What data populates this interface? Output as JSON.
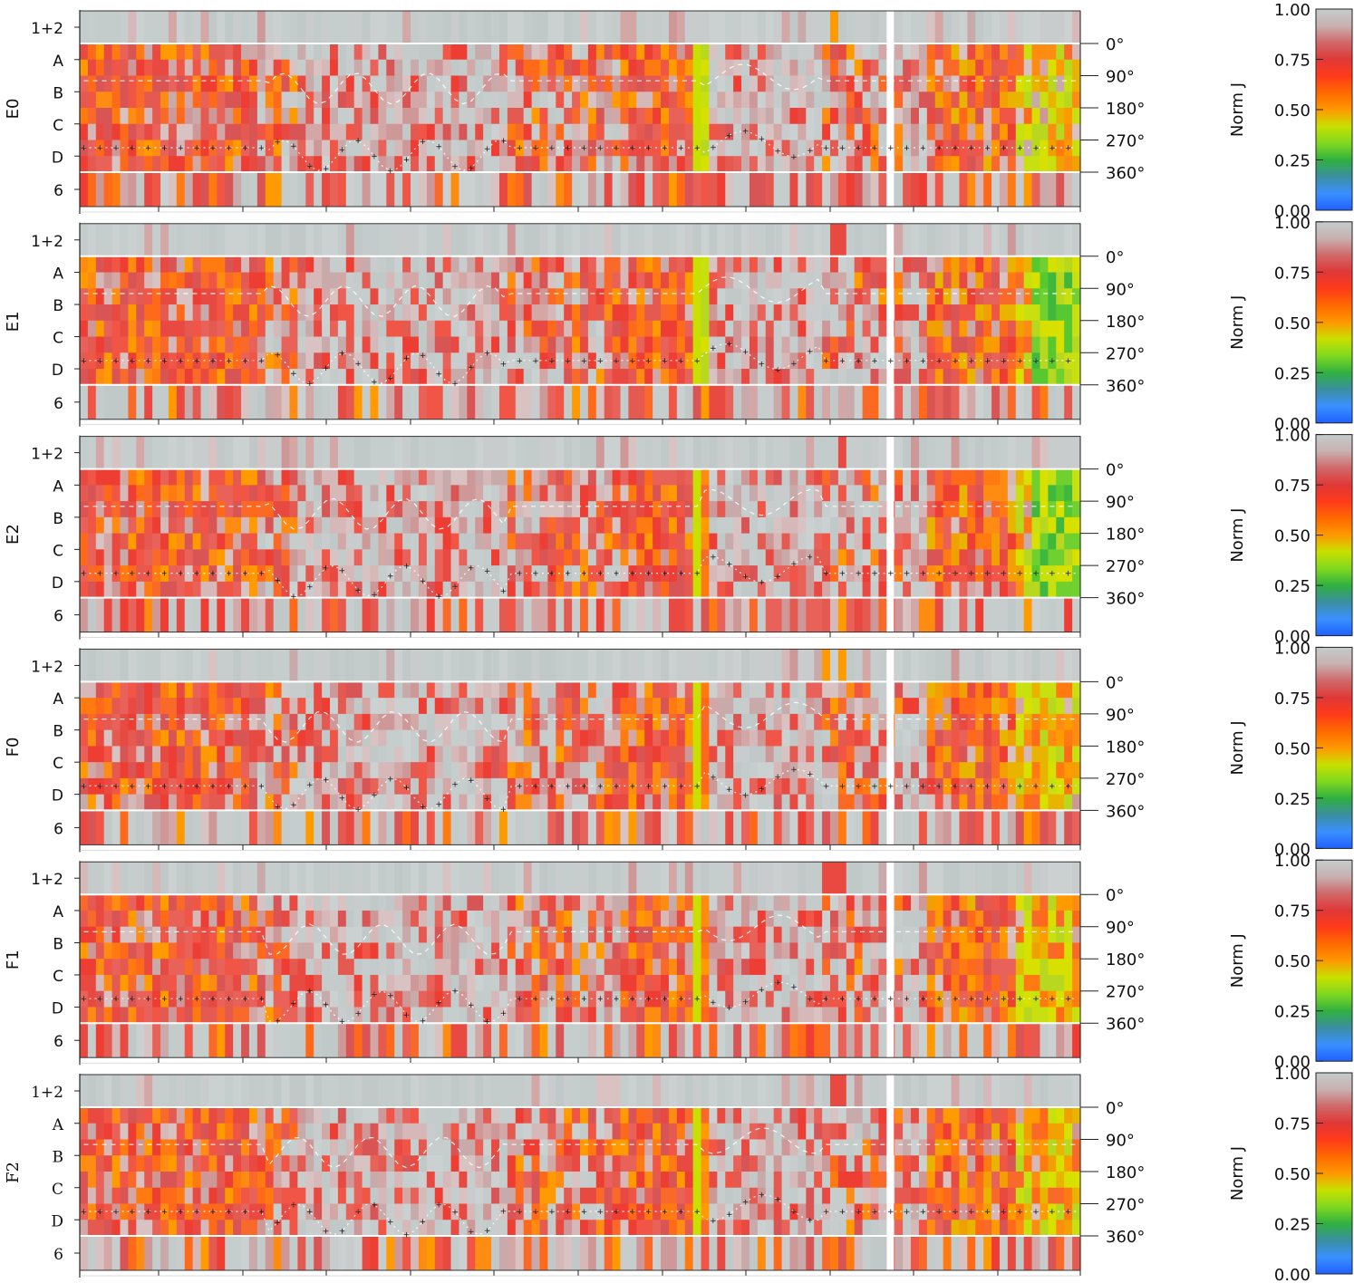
{
  "chart_data": {
    "type": "heatmap",
    "panels": [
      {
        "label": "E0",
        "seed": 11,
        "green": false
      },
      {
        "label": "E1",
        "seed": 23,
        "green": true
      },
      {
        "label": "E2",
        "seed": 37,
        "green": true
      },
      {
        "label": "F0",
        "seed": 41,
        "green": false
      },
      {
        "label": "F1",
        "seed": 53,
        "green": false
      },
      {
        "label": "F2",
        "seed": 67,
        "green": false
      }
    ],
    "row_labels": [
      "1+2",
      "A",
      "B",
      "C",
      "D",
      "6"
    ],
    "angle_ticks": [
      "0°",
      "90°",
      "180°",
      "270°",
      "360°"
    ],
    "colorbar": {
      "label": "Norm J",
      "ticks": [
        "0.00",
        "0.25",
        "0.50",
        "0.75",
        "1.00"
      ],
      "range": [
        0,
        1
      ],
      "stops": [
        "#2060ff",
        "#3a90ff",
        "#3a8fa0",
        "#30b040",
        "#80d820",
        "#c8e000",
        "#ff9800",
        "#ff6a00",
        "#ff3a1a",
        "#e03838",
        "#d06868",
        "#c8b0b0",
        "#c4cccc"
      ]
    },
    "n_columns": 124,
    "gap_column": 100,
    "grid": false
  }
}
